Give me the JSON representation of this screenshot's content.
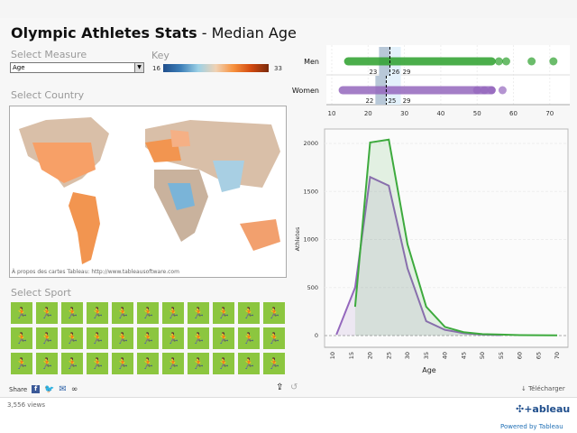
{
  "title": {
    "main": "Olympic Athletes Stats",
    "sep": " - ",
    "sub": "Median Age"
  },
  "measure": {
    "label": "Select Measure",
    "value": "Age"
  },
  "key": {
    "label": "Key",
    "min": "16",
    "max": "33",
    "colors": [
      "#1f4e8c",
      "#9cd1e6",
      "#f7913d",
      "#7a2a0c"
    ]
  },
  "country": {
    "label": "Select Country",
    "map_credit": "À propos des cartes Tableau: http://www.tableausoftware.com"
  },
  "sport": {
    "label": "Select Sport",
    "icons": [
      "archery",
      "athletics",
      "badminton",
      "basketball",
      "beach-volleyball",
      "boxing",
      "canoe-slalom",
      "canoe-sprint",
      "cycling",
      "diving",
      "equestrian",
      "fencing",
      "football",
      "gymnastics",
      "handball",
      "hockey",
      "judo",
      "modern-pentathlon",
      "rowing",
      "sailing",
      "shooting",
      "swimming",
      "synchro-swimming",
      "table-tennis",
      "taekwondo",
      "tennis",
      "triathlon",
      "volleyball",
      "water-polo",
      "weightlifting",
      "wrestling",
      "bmx",
      "mountain-bike"
    ]
  },
  "share": {
    "label": "Share",
    "download": "Télécharger"
  },
  "views": "3,556 views",
  "powered": "Powered by Tableau",
  "strip": {
    "rows": [
      {
        "label": "Men",
        "q1": "23",
        "median": "26",
        "q3": "29",
        "color": "#2ca02c"
      },
      {
        "label": "Women",
        "q1": "22",
        "median": "25",
        "q3": "29",
        "color": "#9467bd"
      }
    ],
    "ticks": [
      "10",
      "20",
      "30",
      "40",
      "50",
      "60",
      "70"
    ]
  },
  "chart_data": {
    "type": "area",
    "xlabel": "Age",
    "ylabel": "Athletes",
    "xlim": [
      10,
      70
    ],
    "ylim": [
      0,
      2000
    ],
    "xticks": [
      "10",
      "15",
      "20",
      "25",
      "30",
      "35",
      "40",
      "45",
      "50",
      "55",
      "60",
      "65",
      "70"
    ],
    "yticks": [
      "0",
      "500",
      "1000",
      "1500",
      "2000"
    ],
    "grid": true,
    "series": [
      {
        "color": "#9467bd",
        "x": [
          11,
          16,
          20,
          25,
          30,
          35,
          40,
          45,
          50,
          55
        ],
        "values": [
          10,
          500,
          1650,
          1560,
          700,
          150,
          60,
          25,
          10,
          5
        ]
      },
      {
        "color": "#3daa3d",
        "x": [
          16,
          20,
          25,
          30,
          35,
          40,
          45,
          50,
          55,
          60,
          65,
          70
        ],
        "values": [
          300,
          2010,
          2040,
          950,
          300,
          90,
          35,
          15,
          10,
          5,
          3,
          2
        ]
      }
    ]
  }
}
